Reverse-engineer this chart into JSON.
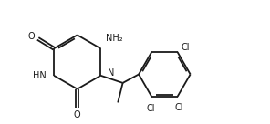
{
  "bg_color": "#ffffff",
  "line_color": "#1a1a1a",
  "text_color": "#1a1a1a",
  "label_N": "N",
  "label_HN": "HN",
  "label_O": "O",
  "label_NH2": "NH₂",
  "label_Cl_top": "Cl",
  "label_Cl_bot": "Cl",
  "figsize": [
    2.96,
    1.36
  ],
  "dpi": 100,
  "lw": 1.3,
  "fs": 7.0
}
